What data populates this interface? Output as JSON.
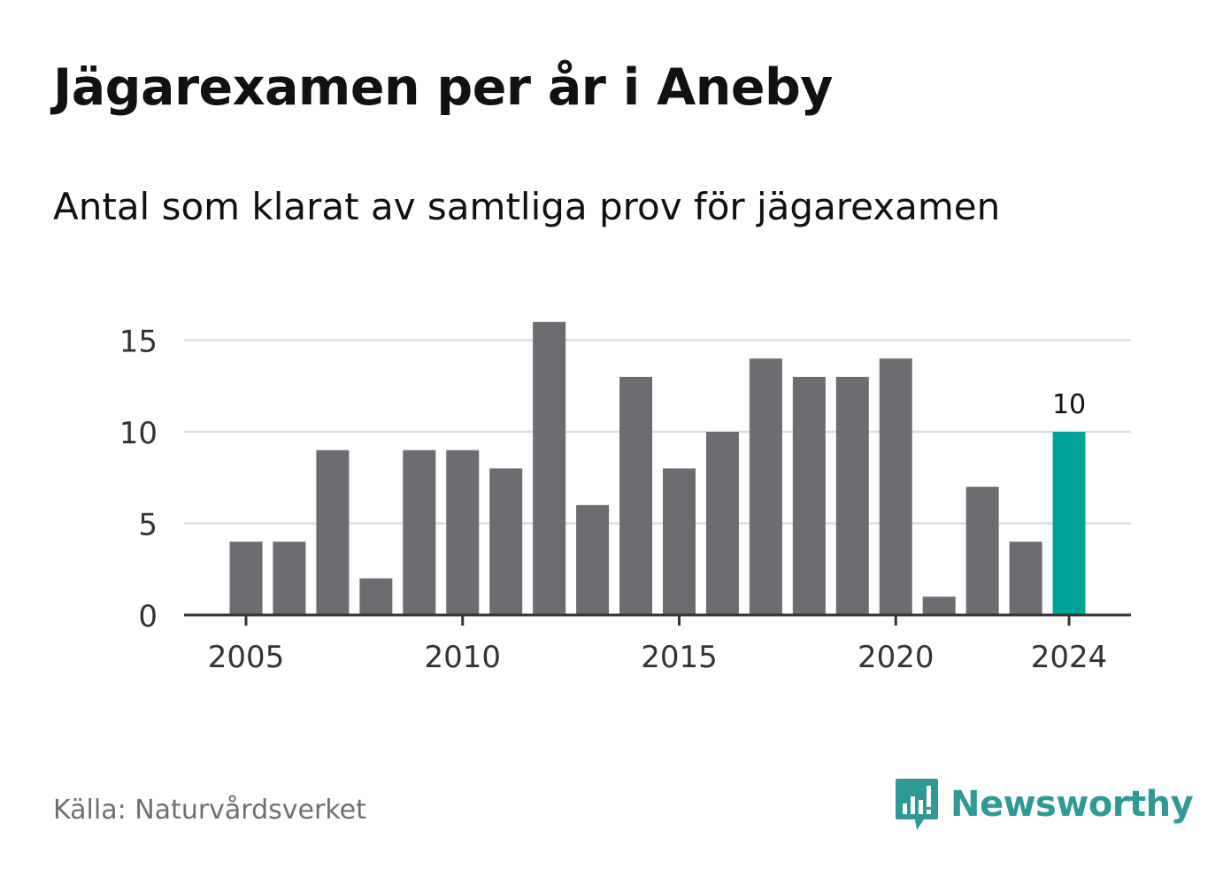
{
  "title": "Jägarexamen per år i Aneby",
  "subtitle": "Antal som klarat av samtliga prov för jägarexamen",
  "source": "Källa: Naturvårdsverket",
  "brand": {
    "name": "Newsworthy",
    "icon": "newsworthy-logo-icon"
  },
  "colors": {
    "bar": "#6d6c71",
    "highlight": "#00a398",
    "grid": "#dddddd",
    "axis": "#333333",
    "text": "#111111",
    "brand": "#2f9a95"
  },
  "chart_data": {
    "type": "bar",
    "categories": [
      "2005",
      "2006",
      "2007",
      "2008",
      "2009",
      "2010",
      "2011",
      "2012",
      "2013",
      "2014",
      "2015",
      "2016",
      "2017",
      "2018",
      "2019",
      "2020",
      "2021",
      "2022",
      "2023",
      "2024"
    ],
    "values": [
      4,
      4,
      9,
      2,
      9,
      9,
      8,
      16,
      6,
      13,
      8,
      10,
      14,
      13,
      13,
      14,
      1,
      7,
      4,
      10
    ],
    "x_tick_labels": [
      "2005",
      "2010",
      "2015",
      "2020",
      "2024"
    ],
    "y_ticks": [
      0,
      5,
      10,
      15
    ],
    "ylim": [
      0,
      16
    ],
    "highlight": {
      "category": "2024",
      "label": "10"
    },
    "grid": true,
    "xlabel": "",
    "ylabel": ""
  }
}
